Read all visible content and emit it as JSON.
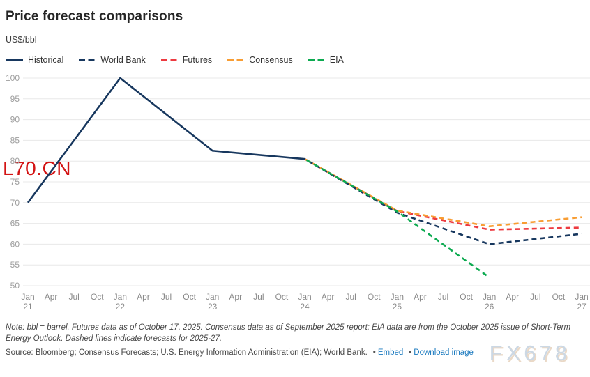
{
  "header": {
    "title": "Price forecast comparisons",
    "unit_label": "US$/bbl"
  },
  "legend": {
    "items": [
      {
        "label": "Historical",
        "color": "#17375e",
        "dashed": false
      },
      {
        "label": "World Bank",
        "color": "#17375e",
        "dashed": true
      },
      {
        "label": "Futures",
        "color": "#ed3a40",
        "dashed": true
      },
      {
        "label": "Consensus",
        "color": "#f89d33",
        "dashed": true
      },
      {
        "label": "EIA",
        "color": "#0caa50",
        "dashed": true
      }
    ]
  },
  "chart_data": {
    "type": "line",
    "title": "Price forecast comparisons",
    "ylabel": "US$/bbl",
    "xlabel": "",
    "ylim": [
      50,
      100
    ],
    "yticks": [
      50,
      55,
      60,
      65,
      70,
      75,
      80,
      85,
      90,
      95,
      100
    ],
    "grid": "horizontal",
    "legend_position": "top-left",
    "x_categories": [
      "Jan 21",
      "Apr",
      "Jul",
      "Oct",
      "Jan 22",
      "Apr",
      "Jul",
      "Oct",
      "Jan 23",
      "Apr",
      "Jul",
      "Oct",
      "Jan 24",
      "Apr",
      "Jul",
      "Oct",
      "Jan 25",
      "Apr",
      "Jul",
      "Oct",
      "Jan 26",
      "Apr",
      "Jul",
      "Oct",
      "Jan 27"
    ],
    "series": [
      {
        "name": "Historical",
        "color": "#17375e",
        "dashed": false,
        "points": [
          [
            "Jan 21",
            70
          ],
          [
            "Jan 22",
            100
          ],
          [
            "Jan 23",
            82.5
          ],
          [
            "Jan 24",
            80.5
          ]
        ]
      },
      {
        "name": "World Bank",
        "color": "#17375e",
        "dashed": true,
        "points": [
          [
            "Jan 24",
            80.5
          ],
          [
            "Jan 25",
            67.6
          ],
          [
            "Jan 26",
            60
          ],
          [
            "Jan 27",
            62.5
          ]
        ]
      },
      {
        "name": "Futures",
        "color": "#ed3a40",
        "dashed": true,
        "points": [
          [
            "Jan 24",
            80.5
          ],
          [
            "Jan 25",
            68
          ],
          [
            "Jan 26",
            63.5
          ],
          [
            "Jan 27",
            64
          ]
        ]
      },
      {
        "name": "Consensus",
        "color": "#f89d33",
        "dashed": true,
        "points": [
          [
            "Jan 24",
            80.5
          ],
          [
            "Jan 25",
            68.1
          ],
          [
            "Jan 26",
            64.3
          ],
          [
            "Jan 27",
            66.5
          ]
        ]
      },
      {
        "name": "EIA",
        "color": "#0caa50",
        "dashed": true,
        "points": [
          [
            "Jan 24",
            80.5
          ],
          [
            "Jan 25",
            67.9
          ],
          [
            "Jan 26",
            52
          ]
        ]
      }
    ]
  },
  "watermarks": {
    "left": "L70.CN",
    "right": "FX678"
  },
  "footer": {
    "note": "Note: bbl = barrel. Futures data as of October 17, 2025. Consensus data as of September 2025 report; EIA data are from the October 2025 issue of Short-Term Energy Outlook. Dashed lines indicate forecasts for 2025-27.",
    "source": "Source: Bloomberg; Consensus Forecasts; U.S. Energy Information Administration (EIA); World Bank.",
    "bullet": "•",
    "links": [
      {
        "label": "Embed"
      },
      {
        "label": "Download image"
      }
    ]
  }
}
